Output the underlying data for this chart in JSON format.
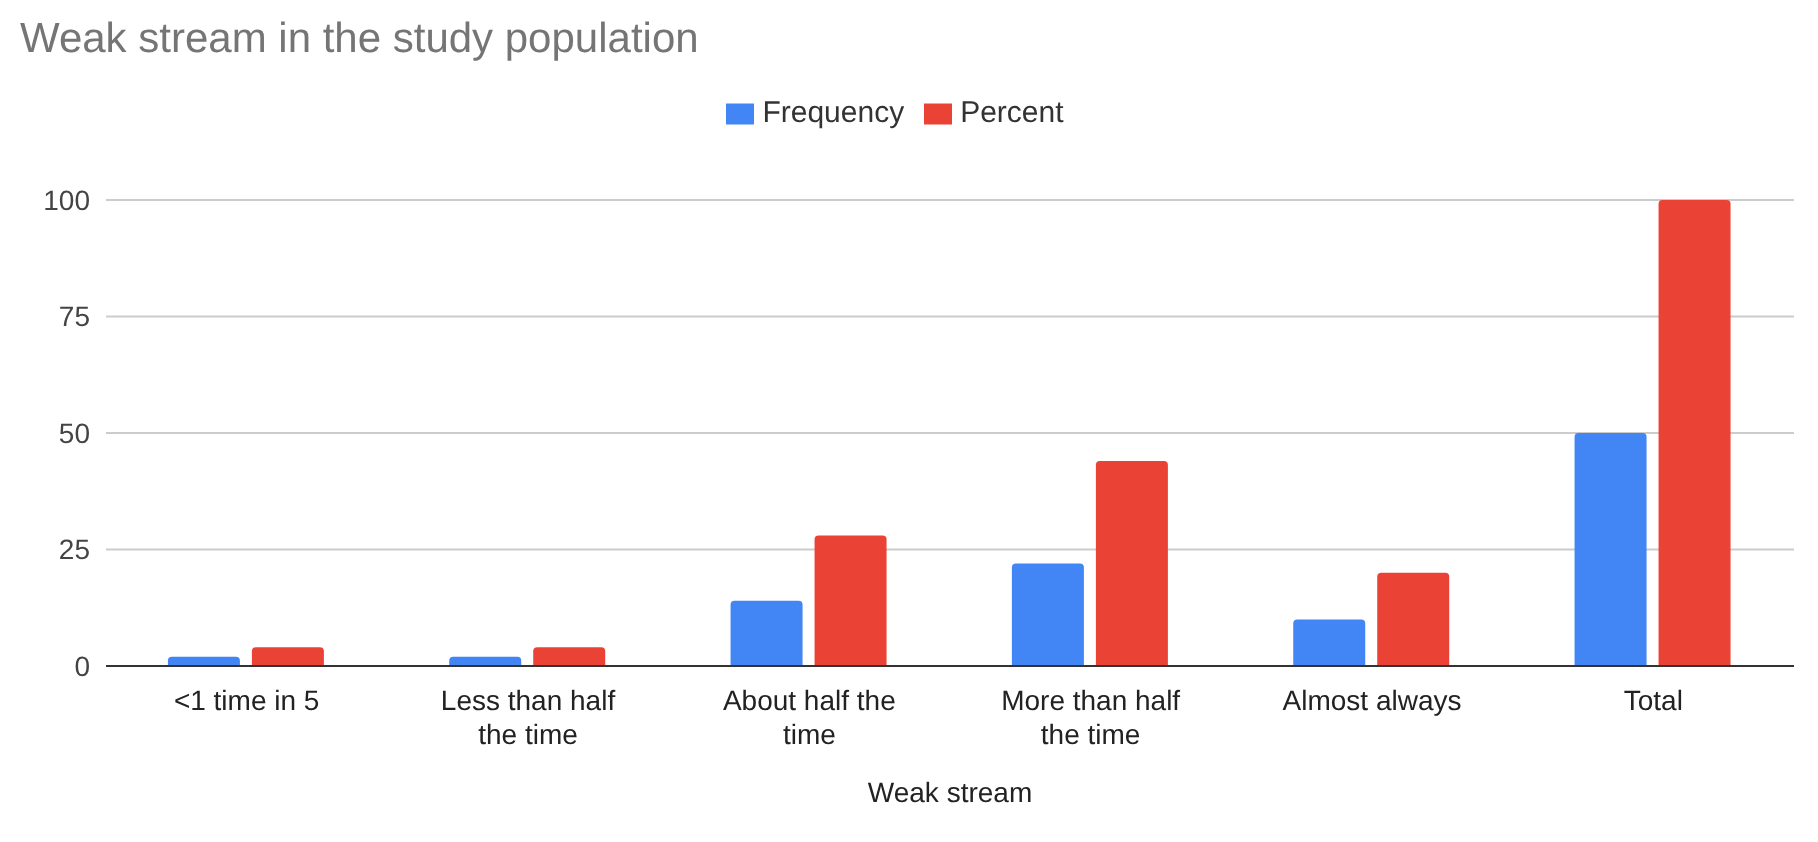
{
  "chart_data": {
    "type": "bar",
    "title": "Weak stream in the study population",
    "xlabel": "Weak stream",
    "categories": [
      "<1 time in 5",
      "Less than half the time",
      "About half the time",
      "More than half the time",
      "Almost always",
      "Total"
    ],
    "series": [
      {
        "name": "Frequency",
        "color": "#4285f4",
        "values": [
          2,
          2,
          14,
          22,
          10,
          50
        ]
      },
      {
        "name": "Percent",
        "color": "#ea4335",
        "values": [
          4,
          4,
          28,
          44,
          20,
          100
        ]
      }
    ],
    "ylim": [
      0,
      100
    ],
    "yticks": [
      0,
      25,
      50,
      75,
      100
    ],
    "grid": "y",
    "legend": "top"
  }
}
